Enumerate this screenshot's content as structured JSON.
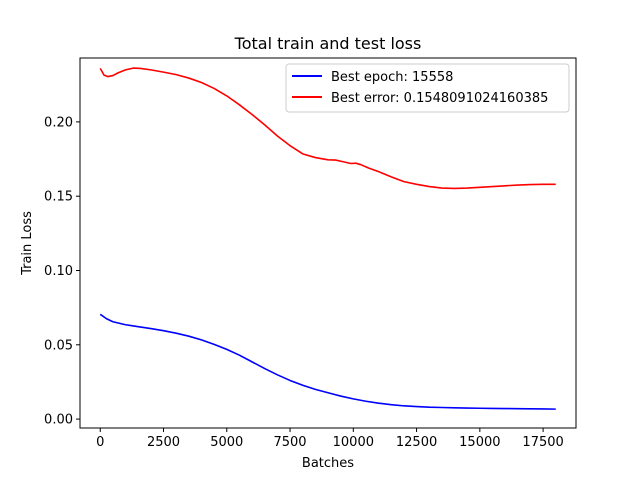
{
  "chart_data": {
    "type": "line",
    "title": "Total train and test loss",
    "xlabel": "Batches",
    "ylabel": "Train Loss",
    "xlim": [
      -800,
      18800
    ],
    "ylim": [
      -0.006,
      0.243
    ],
    "xticks": [
      0,
      2500,
      5000,
      7500,
      10000,
      12500,
      15000,
      17500
    ],
    "xtick_labels": [
      "0",
      "2500",
      "5000",
      "7500",
      "10000",
      "12500",
      "15000",
      "17500"
    ],
    "yticks": [
      0.0,
      0.05,
      0.1,
      0.15,
      0.2
    ],
    "ytick_labels": [
      "0.00",
      "0.05",
      "0.10",
      "0.15",
      "0.20"
    ],
    "grid": false,
    "legend_position": "top-right",
    "series": [
      {
        "name": "Best epoch: 15558",
        "color": "#0000ff",
        "x": [
          0,
          250,
          500,
          1000,
          1500,
          2000,
          2500,
          3000,
          3500,
          4000,
          4500,
          5000,
          5500,
          6000,
          6500,
          7000,
          7500,
          8000,
          8500,
          9000,
          9500,
          10000,
          10500,
          11000,
          11500,
          12000,
          12500,
          13000,
          13500,
          14000,
          14500,
          15000,
          15500,
          16000,
          16500,
          17000,
          17500,
          18000
        ],
        "values": [
          0.0705,
          0.0675,
          0.0655,
          0.0635,
          0.0622,
          0.0609,
          0.0595,
          0.0578,
          0.0558,
          0.0533,
          0.0503,
          0.0469,
          0.043,
          0.0385,
          0.034,
          0.0298,
          0.026,
          0.0228,
          0.02,
          0.0177,
          0.0155,
          0.0136,
          0.012,
          0.0107,
          0.0097,
          0.0089,
          0.0084,
          0.008,
          0.0078,
          0.0076,
          0.0074,
          0.0073,
          0.0072,
          0.0071,
          0.007,
          0.0069,
          0.0068,
          0.0067
        ]
      },
      {
        "name": "Best error: 0.1548091024160385",
        "color": "#ff0000",
        "x": [
          0,
          150,
          300,
          500,
          700,
          1000,
          1300,
          1600,
          2000,
          2500,
          3000,
          3500,
          4000,
          4500,
          5000,
          5500,
          6000,
          6500,
          7000,
          7500,
          8000,
          8500,
          9000,
          9300,
          9600,
          9900,
          10100,
          10300,
          10600,
          11000,
          11500,
          12000,
          12500,
          13000,
          13500,
          14000,
          14500,
          15000,
          15500,
          16000,
          16500,
          17000,
          17500,
          18000
        ],
        "values": [
          0.236,
          0.2315,
          0.2305,
          0.2312,
          0.233,
          0.235,
          0.2362,
          0.236,
          0.235,
          0.2335,
          0.2318,
          0.2295,
          0.2265,
          0.2225,
          0.2175,
          0.2115,
          0.205,
          0.198,
          0.1905,
          0.184,
          0.1785,
          0.176,
          0.1745,
          0.1743,
          0.1732,
          0.172,
          0.1722,
          0.1712,
          0.169,
          0.1665,
          0.163,
          0.1598,
          0.158,
          0.1565,
          0.1555,
          0.1552,
          0.1555,
          0.156,
          0.1565,
          0.157,
          0.1575,
          0.1578,
          0.158,
          0.158
        ]
      }
    ]
  }
}
